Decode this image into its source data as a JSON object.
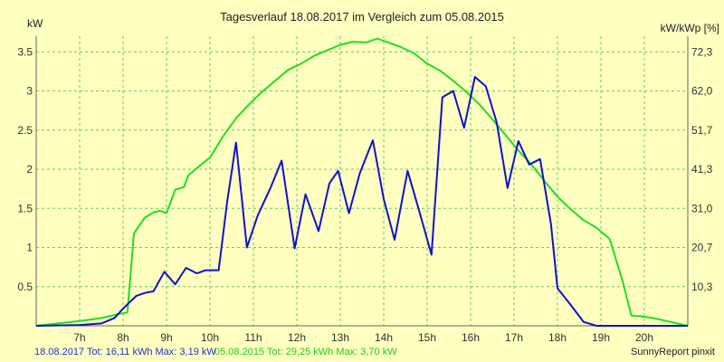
{
  "chart_data": {
    "type": "line",
    "title": "Tagesverlauf 18.08.2017 im Vergleich zum 05.08.2015",
    "ylabel": "kW",
    "y2label": "kW/kWp [%]",
    "xlim": [
      6,
      21
    ],
    "ylim": [
      0,
      3.7
    ],
    "x_ticks": [
      {
        "x": 7,
        "label": "7h"
      },
      {
        "x": 8,
        "label": "8h"
      },
      {
        "x": 9,
        "label": "9h"
      },
      {
        "x": 10,
        "label": "10h"
      },
      {
        "x": 11,
        "label": "11h"
      },
      {
        "x": 12,
        "label": "12h"
      },
      {
        "x": 13,
        "label": "13h"
      },
      {
        "x": 14,
        "label": "14h"
      },
      {
        "x": 15,
        "label": "15h"
      },
      {
        "x": 16,
        "label": "16h"
      },
      {
        "x": 17,
        "label": "17h"
      },
      {
        "x": 18,
        "label": "18h"
      },
      {
        "x": 19,
        "label": "19h"
      },
      {
        "x": 20,
        "label": "20h"
      }
    ],
    "y_ticks": [
      {
        "v": 0.5,
        "label": "0.5"
      },
      {
        "v": 1,
        "label": "1"
      },
      {
        "v": 1.5,
        "label": "1.5"
      },
      {
        "v": 2,
        "label": "2"
      },
      {
        "v": 2.5,
        "label": "2.5"
      },
      {
        "v": 3,
        "label": "3"
      },
      {
        "v": 3.5,
        "label": "3.5"
      }
    ],
    "y2_ticks": [
      {
        "v": 0.5,
        "label": "10,3"
      },
      {
        "v": 1,
        "label": "20,7"
      },
      {
        "v": 1.5,
        "label": "31,0"
      },
      {
        "v": 2,
        "label": "41,3"
      },
      {
        "v": 2.5,
        "label": "51,7"
      },
      {
        "v": 3,
        "label": "62,0"
      },
      {
        "v": 3.5,
        "label": "72,3"
      }
    ],
    "grid": true,
    "series": [
      {
        "name": "05.08.2015",
        "color": "#22dd22",
        "points": [
          [
            6.0,
            0.0
          ],
          [
            7.0,
            0.06
          ],
          [
            7.5,
            0.1
          ],
          [
            7.9,
            0.15
          ],
          [
            8.1,
            0.17
          ],
          [
            8.25,
            1.18
          ],
          [
            8.5,
            1.38
          ],
          [
            8.7,
            1.45
          ],
          [
            8.85,
            1.47
          ],
          [
            9.0,
            1.44
          ],
          [
            9.2,
            1.74
          ],
          [
            9.4,
            1.77
          ],
          [
            9.5,
            1.92
          ],
          [
            9.8,
            2.06
          ],
          [
            10.0,
            2.15
          ],
          [
            10.3,
            2.42
          ],
          [
            10.6,
            2.65
          ],
          [
            10.9,
            2.83
          ],
          [
            11.2,
            2.99
          ],
          [
            11.5,
            3.13
          ],
          [
            11.8,
            3.27
          ],
          [
            12.1,
            3.35
          ],
          [
            12.4,
            3.45
          ],
          [
            12.7,
            3.52
          ],
          [
            13.0,
            3.59
          ],
          [
            13.3,
            3.63
          ],
          [
            13.6,
            3.62
          ],
          [
            13.85,
            3.67
          ],
          [
            14.0,
            3.64
          ],
          [
            14.4,
            3.56
          ],
          [
            14.7,
            3.48
          ],
          [
            15.0,
            3.35
          ],
          [
            15.3,
            3.26
          ],
          [
            15.6,
            3.13
          ],
          [
            15.9,
            2.99
          ],
          [
            16.2,
            2.83
          ],
          [
            16.5,
            2.64
          ],
          [
            16.8,
            2.44
          ],
          [
            17.1,
            2.24
          ],
          [
            17.4,
            2.06
          ],
          [
            17.7,
            1.85
          ],
          [
            18.0,
            1.65
          ],
          [
            18.3,
            1.49
          ],
          [
            18.6,
            1.35
          ],
          [
            18.9,
            1.25
          ],
          [
            19.2,
            1.11
          ],
          [
            19.5,
            0.57
          ],
          [
            19.7,
            0.13
          ],
          [
            19.95,
            0.12
          ],
          [
            20.2,
            0.1
          ],
          [
            20.6,
            0.05
          ],
          [
            21.0,
            0.0
          ]
        ]
      },
      {
        "name": "18.08.2017",
        "color": "#1111cc",
        "points": [
          [
            6.0,
            0.0
          ],
          [
            7.0,
            0.01
          ],
          [
            7.5,
            0.03
          ],
          [
            7.8,
            0.1
          ],
          [
            8.0,
            0.22
          ],
          [
            8.3,
            0.38
          ],
          [
            8.5,
            0.42
          ],
          [
            8.7,
            0.44
          ],
          [
            8.95,
            0.69
          ],
          [
            9.2,
            0.53
          ],
          [
            9.45,
            0.74
          ],
          [
            9.7,
            0.67
          ],
          [
            9.9,
            0.71
          ],
          [
            10.2,
            0.71
          ],
          [
            10.4,
            1.6
          ],
          [
            10.6,
            2.34
          ],
          [
            10.85,
            1.0
          ],
          [
            11.1,
            1.41
          ],
          [
            11.4,
            1.77
          ],
          [
            11.65,
            2.11
          ],
          [
            11.95,
            0.99
          ],
          [
            12.2,
            1.68
          ],
          [
            12.5,
            1.21
          ],
          [
            12.75,
            1.82
          ],
          [
            12.95,
            1.98
          ],
          [
            13.2,
            1.44
          ],
          [
            13.45,
            1.95
          ],
          [
            13.75,
            2.37
          ],
          [
            14.0,
            1.62
          ],
          [
            14.25,
            1.1
          ],
          [
            14.55,
            1.98
          ],
          [
            14.8,
            1.5
          ],
          [
            15.1,
            0.91
          ],
          [
            15.35,
            2.92
          ],
          [
            15.6,
            3.0
          ],
          [
            15.85,
            2.53
          ],
          [
            16.1,
            3.18
          ],
          [
            16.35,
            3.06
          ],
          [
            16.6,
            2.6
          ],
          [
            16.85,
            1.76
          ],
          [
            17.1,
            2.36
          ],
          [
            17.35,
            2.06
          ],
          [
            17.6,
            2.13
          ],
          [
            17.85,
            1.3
          ],
          [
            18.0,
            0.48
          ],
          [
            18.3,
            0.27
          ],
          [
            18.6,
            0.05
          ],
          [
            18.9,
            0.0
          ],
          [
            21.0,
            0.0
          ]
        ]
      }
    ],
    "legend_position": "bottom-left"
  },
  "footer": {
    "series1_text": "18.08.2017 Tot: 16,11 kWh Max: 3,19 kW",
    "series1_color": "#2233cc",
    "series2_text": "05.08.2015 Tot: 29,25 kWh Max: 3,70 kW",
    "series2_color": "#22cc22",
    "credit": "SunnyReport pinxit"
  }
}
